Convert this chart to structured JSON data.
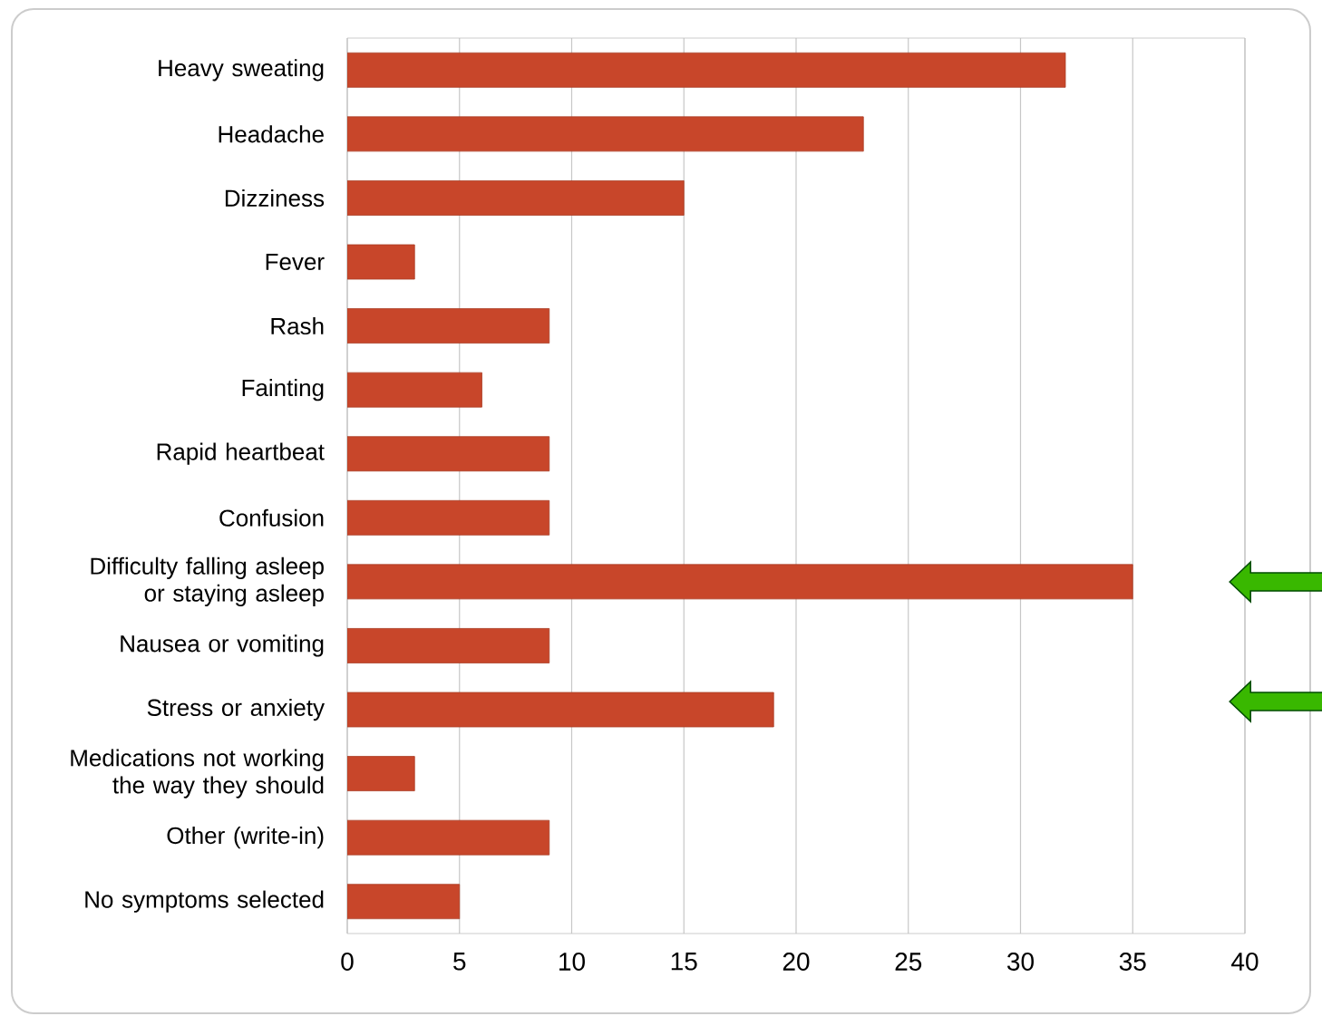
{
  "chart_data": {
    "type": "bar",
    "orientation": "horizontal",
    "categories": [
      "Heavy sweating",
      "Headache",
      "Dizziness",
      "Fever",
      "Rash",
      "Fainting",
      "Rapid heartbeat",
      "Confusion",
      "Difficulty falling asleep or staying asleep",
      "Nausea or vomiting",
      "Stress or anxiety",
      "Medications not working the way they should",
      "Other (write-in)",
      "No symptoms selected"
    ],
    "values": [
      32,
      23,
      15,
      3,
      9,
      6,
      9,
      9,
      35,
      9,
      19,
      3,
      9,
      5
    ],
    "color": "#c8462a",
    "xlim": [
      0,
      40
    ],
    "xticks": [
      0,
      5,
      10,
      15,
      20,
      25,
      30,
      35,
      40
    ],
    "grid": "x"
  }
}
